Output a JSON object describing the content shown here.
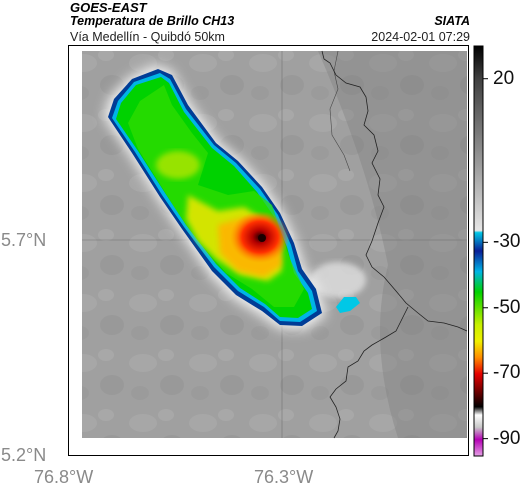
{
  "header": {
    "satellite": "GOES-EAST",
    "product": "Temperatura de Brillo CH13",
    "organization": "SIATA",
    "area": "Vía Medellín - Quibdó 50km",
    "timestamp": "2024-02-01 07:29"
  },
  "axes": {
    "lat_ticks": [
      "5.7°N",
      "5.2°N"
    ],
    "lon_ticks": [
      "76.8°W",
      "76.3°W"
    ]
  },
  "colorbar": {
    "ticks": [
      "20",
      "-30",
      "-50",
      "-70",
      "-90"
    ],
    "tick_values": [
      20,
      -30,
      -50,
      -70,
      -90
    ],
    "range": [
      -95,
      30
    ],
    "colors": {
      "warm_gray_light": "#dcdcdc",
      "gray_dark": "#4a4a4a",
      "cyan": "#00c8e6",
      "blue": "#0a1e96",
      "green": "#00d200",
      "yellow": "#f0f000",
      "orange": "#ff8c00",
      "red": "#e60000",
      "maroon": "#5a0000",
      "purple": "#b400b4"
    }
  }
}
